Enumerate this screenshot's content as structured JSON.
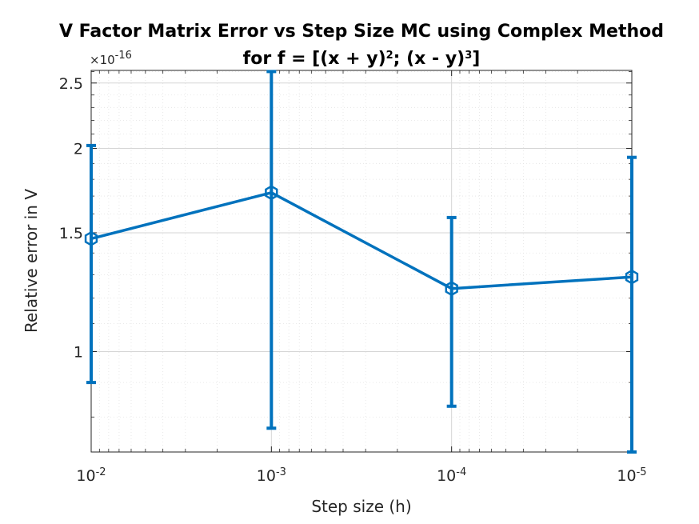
{
  "chart_data": {
    "type": "line",
    "title": "V Factor Matrix Error vs Step Size MC using Complex Method",
    "subtitle": {
      "prefix": "for f = [(x + y)",
      "exp1": "2",
      "middle": "; (x - y)",
      "exp2": "3",
      "suffix": "]"
    },
    "xlabel": "Step size (h)",
    "ylabel": "Relative error in V",
    "x_scale": "log",
    "x_reversed": true,
    "y_scale": "log",
    "y_multiplier": {
      "base": "10",
      "exponent": "-16",
      "sign": "×"
    },
    "x": [
      0.01,
      0.001,
      0.0001,
      1e-05
    ],
    "x_ticks": [
      {
        "value": 0.01,
        "base": "10",
        "exp": "-2"
      },
      {
        "value": 0.001,
        "base": "10",
        "exp": "-3"
      },
      {
        "value": 0.0001,
        "base": "10",
        "exp": "-4"
      },
      {
        "value": 1e-05,
        "base": "10",
        "exp": "-5"
      }
    ],
    "y_ticks": [
      {
        "value": 1.0,
        "label": "1"
      },
      {
        "value": 1.5,
        "label": "1.5"
      },
      {
        "value": 2.0,
        "label": "2"
      },
      {
        "value": 2.5,
        "label": "2.5"
      }
    ],
    "xlim": [
      0.01,
      1e-05
    ],
    "ylim": [
      0.71,
      2.61
    ],
    "grid": true,
    "minor_grid": true,
    "series": [
      {
        "values": [
          1.47,
          1.72,
          1.24,
          1.29
        ],
        "error_low": [
          0.9,
          0.77,
          0.83,
          0.71
        ],
        "error_high": [
          2.02,
          2.6,
          1.58,
          1.94
        ],
        "color": "#0072BD",
        "marker": "hexagon"
      }
    ]
  }
}
